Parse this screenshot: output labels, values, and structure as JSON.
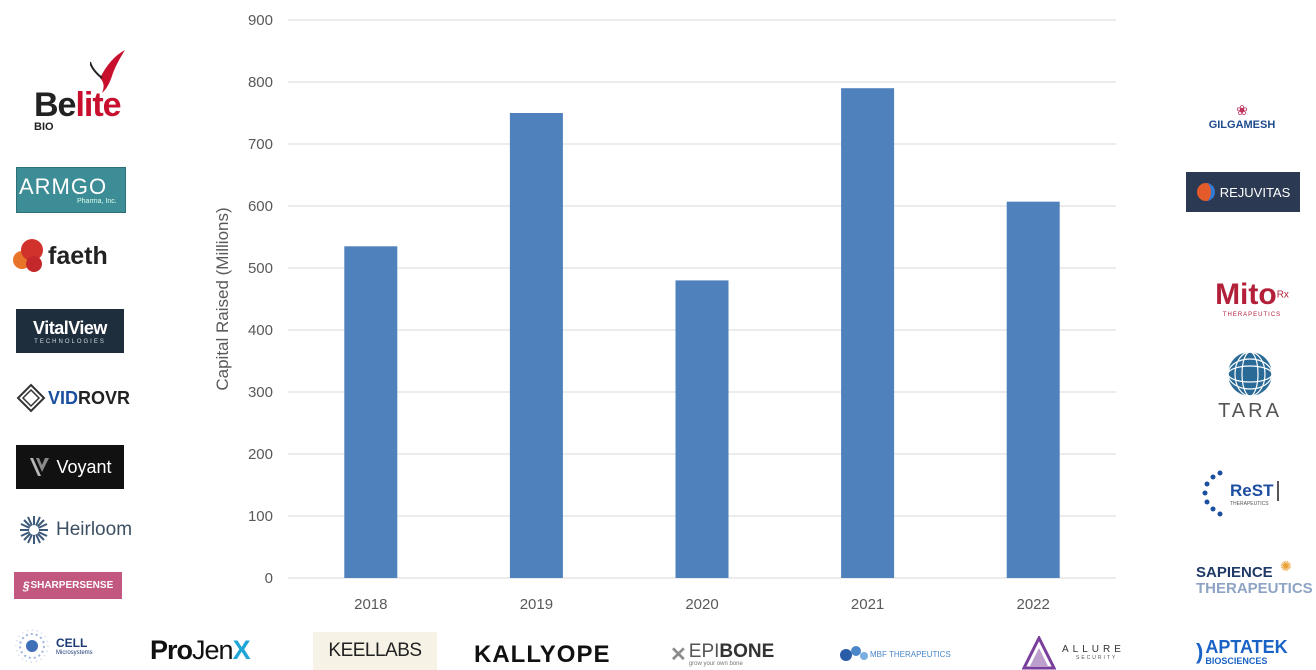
{
  "chart_data": {
    "type": "bar",
    "categories": [
      "2018",
      "2019",
      "2020",
      "2021",
      "2022"
    ],
    "values": [
      535,
      750,
      480,
      790,
      607
    ],
    "title": "",
    "xlabel": "",
    "ylabel": "Capital Raised (Millions)",
    "ylim": [
      0,
      900
    ],
    "yticks": [
      0,
      100,
      200,
      300,
      400,
      500,
      600,
      700,
      800,
      900
    ],
    "grid": true,
    "legend": "none",
    "bar_color": "#4f81bd"
  },
  "logos": {
    "belite": {
      "main_a": "Be",
      "main_b": "lite",
      "sub": "BIO"
    },
    "armgo": {
      "name": "ARMGO",
      "sub": "Pharma, Inc."
    },
    "faeth": {
      "name": "faeth"
    },
    "vitalview": {
      "name": "VitalView",
      "sub": "TECHNOLOGIES"
    },
    "vidrovr": {
      "a": "VID",
      "b": "ROVR"
    },
    "voyant": {
      "name": "Voyant"
    },
    "heirloom": {
      "name": "Heirloom"
    },
    "sharpersense": {
      "name": "SHARPERSENSE"
    },
    "cell": {
      "name": "CELL",
      "sub": "Microsystems"
    },
    "projenx": {
      "a": "Pro",
      "b": "Jen",
      "c": "X"
    },
    "keellabs": {
      "name": "KEELLABS"
    },
    "kallyope": {
      "name": "KALLYOPE"
    },
    "epibone": {
      "a": "EPI",
      "b": "BONE",
      "sub": "grow your own bone"
    },
    "mbf": {
      "name": "MBF THERAPEUTICS"
    },
    "allure": {
      "name": "ALLURE",
      "sub": "SECURITY"
    },
    "aptatek": {
      "name": "APTATEK",
      "sub": "BIOSCIENCES"
    },
    "gilgamesh": {
      "name": "GILGAMESH"
    },
    "rejuvitas": {
      "name": "REJUVITAS"
    },
    "mito": {
      "name": "Mito",
      "sup": "Rx",
      "sub": "THERAPEUTICS"
    },
    "tara": {
      "name": "TARA"
    },
    "rest": {
      "name": "ReST",
      "sub": "THERAPEUTICS"
    },
    "sapience": {
      "line1": "SAPIENCE",
      "line2": "THERAPEUTICS"
    }
  }
}
